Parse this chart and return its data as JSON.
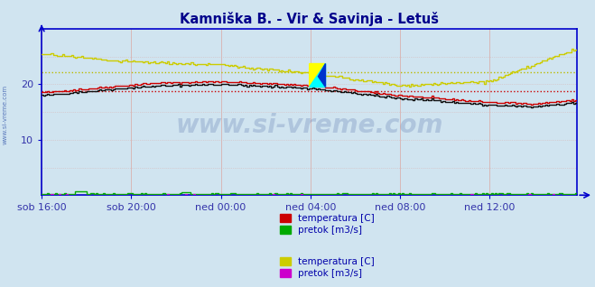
{
  "title": "Kamniška B. - Vir & Savinja - Letuš",
  "title_color": "#00008B",
  "bg_color": "#d0e4f0",
  "plot_bg_color": "#d0e4f0",
  "xlim": [
    0,
    287
  ],
  "ylim": [
    0,
    30
  ],
  "yticks": [
    10,
    20
  ],
  "xtick_labels": [
    "sob 16:00",
    "sob 20:00",
    "ned 00:00",
    "ned 04:00",
    "ned 08:00",
    "ned 12:00"
  ],
  "xtick_positions": [
    0,
    48,
    96,
    144,
    192,
    240
  ],
  "grid_color_v": "#d8b8b8",
  "grid_color_h": "#d8b8b8",
  "axis_color": "#0000cc",
  "tick_color": "#3333aa",
  "watermark": "www.si-vreme.com",
  "watermark_color": "#1a3a8a",
  "watermark_alpha": 0.18,
  "hline1_y": 18.8,
  "hline1_color": "#cc0000",
  "hline2_y": 22.2,
  "hline2_color": "#bbbb00",
  "legend_items": [
    {
      "label": "temperatura [C]",
      "color": "#cc0000"
    },
    {
      "label": "pretok [m3/s]",
      "color": "#00aa00"
    },
    {
      "label": "temperatura [C]",
      "color": "#cccc00"
    },
    {
      "label": "pretok [m3/s]",
      "color": "#cc00cc"
    }
  ],
  "legend_text_color": "#0000aa",
  "sidebar_text": "www.si-vreme.com",
  "sidebar_color": "#3355aa"
}
